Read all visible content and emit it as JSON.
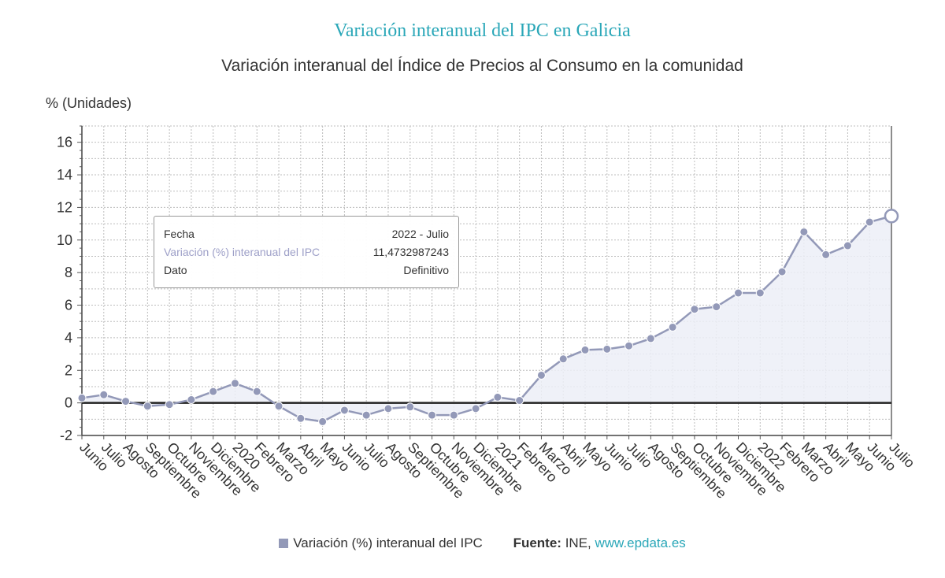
{
  "title": "Variación interanual del IPC en Galicia",
  "subtitle": "Variación interanual del Índice de Precios al Consumo en la comunidad",
  "tooltip": {
    "rows": [
      {
        "key": "Fecha",
        "value": "2022 - Julio"
      },
      {
        "key": "Variación (%) interanual del IPC",
        "value": "11,4732987243"
      },
      {
        "key": "Dato",
        "value": "Definitivo"
      }
    ]
  },
  "legend": {
    "label": "Variación (%) interanual del IPC"
  },
  "source": {
    "label": "Fuente:",
    "org": "INE,",
    "link": "www.epdata.es"
  },
  "colors": {
    "line": "#9399b8",
    "fill": "#eceef7",
    "title": "#2aa7b8",
    "zero": "#222222"
  },
  "chart_data": {
    "type": "area",
    "title": "Variación interanual del IPC en Galicia",
    "subtitle": "Variación interanual del Índice de Precios al Consumo en la comunidad",
    "ylabel": "% (Unidades)",
    "xlabel": "",
    "ylim": [
      -2,
      17
    ],
    "yticks": [
      -2,
      0,
      2,
      4,
      6,
      8,
      10,
      12,
      14,
      16
    ],
    "grid": true,
    "legend_position": "bottom",
    "categories": [
      "Junio",
      "Julio",
      "Agosto",
      "Septiembre",
      "Octubre",
      "Noviembre",
      "Diciembre",
      "2020",
      "Febrero",
      "Marzo",
      "Abril",
      "Mayo",
      "Junio",
      "Julio",
      "Agosto",
      "Septiembre",
      "Octubre",
      "Noviembre",
      "Diciembre",
      "2021",
      "Febrero",
      "Marzo",
      "Abril",
      "Mayo",
      "Junio",
      "Julio",
      "Agosto",
      "Septiembre",
      "Octubre",
      "Noviembre",
      "Diciembre",
      "2022",
      "Febrero",
      "Marzo",
      "Abril",
      "Mayo",
      "Junio",
      "Julio"
    ],
    "series": [
      {
        "name": "Variación (%) interanual del IPC",
        "values": [
          0.3,
          0.5,
          0.1,
          -0.2,
          -0.1,
          0.2,
          0.7,
          1.2,
          0.7,
          -0.2,
          -0.95,
          -1.15,
          -0.45,
          -0.75,
          -0.35,
          -0.25,
          -0.75,
          -0.75,
          -0.35,
          0.35,
          0.15,
          1.7,
          2.7,
          3.25,
          3.3,
          3.5,
          3.95,
          4.65,
          5.75,
          5.9,
          6.75,
          6.75,
          8.05,
          10.5,
          9.1,
          9.65,
          11.1,
          11.47
        ]
      }
    ],
    "highlight_index": 37
  }
}
